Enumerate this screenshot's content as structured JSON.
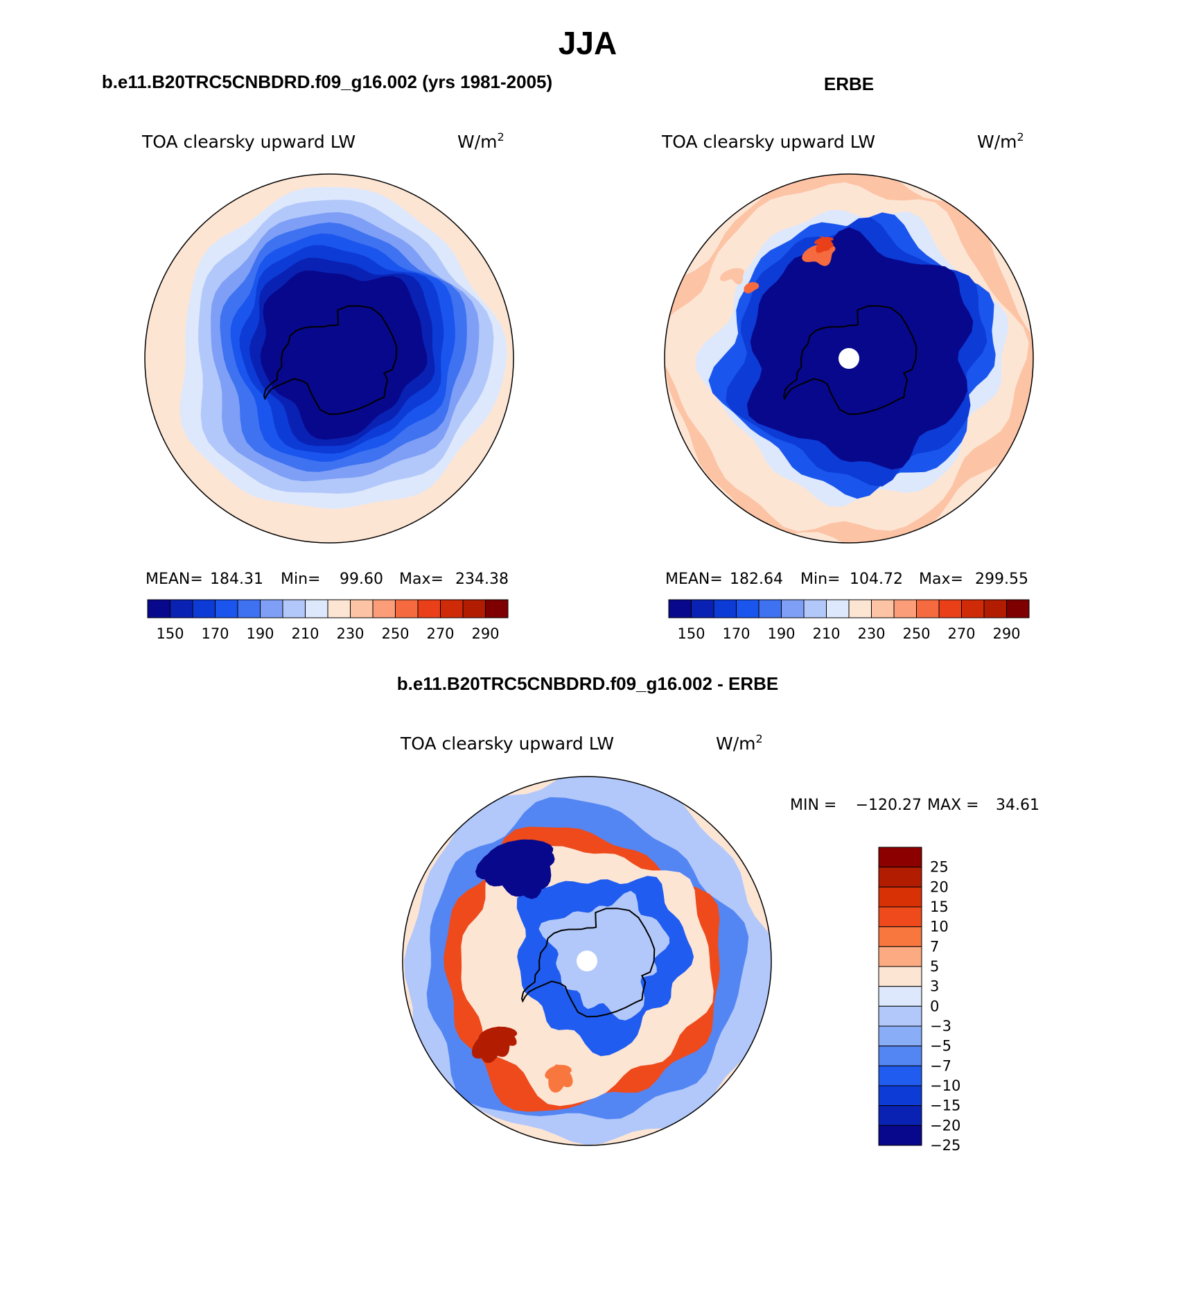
{
  "figure": {
    "title": "JJA",
    "title_left": "b.e11.B20TRC5CNBDRD.f09_g16.002 (yrs 1981-2005)",
    "title_right": "ERBE",
    "title_diff": "b.e11.B20TRC5CNBDRD.f09_g16.002 - ERBE"
  },
  "colors": {
    "ocean_warm": "#fde5d4",
    "outline": "#000000",
    "pole_fill": "#ffffff"
  },
  "chart_data": [
    {
      "type": "heatmap",
      "projection": "south-polar-stereographic",
      "panel": "model",
      "variable_label": "TOA clearsky upward LW",
      "units_label": "W/m",
      "units_sup": "2",
      "stats": {
        "mean_label": "MEAN=",
        "mean": "184.31",
        "min_label": "Min=",
        "min": "99.60",
        "max_label": "Max=",
        "max": "234.38"
      },
      "colorbar": {
        "orientation": "horizontal",
        "levels": [
          150,
          160,
          170,
          180,
          190,
          200,
          210,
          220,
          230,
          240,
          250,
          260,
          270,
          280,
          290
        ],
        "tick_labels": [
          "150",
          "170",
          "190",
          "210",
          "230",
          "250",
          "270",
          "290"
        ],
        "colors": [
          "#08088c",
          "#0a22b4",
          "#0d3bd6",
          "#1a55ee",
          "#3f72f1",
          "#7e9ff5",
          "#b3c8fa",
          "#dde8fc",
          "#fde5d4",
          "#fcc3a5",
          "#fb9d78",
          "#f56b3f",
          "#e9401a",
          "#d02b08",
          "#b21d02",
          "#7f0000"
        ]
      },
      "contour_bands": [
        {
          "level": 235,
          "color": "#fde5d4"
        },
        {
          "level": 225,
          "color": "#dde8fc"
        },
        {
          "level": 215,
          "color": "#b3c8fa"
        },
        {
          "level": 205,
          "color": "#7e9ff5"
        },
        {
          "level": 195,
          "color": "#3f72f1"
        },
        {
          "level": 185,
          "color": "#1a55ee"
        },
        {
          "level": 175,
          "color": "#0d3bd6"
        },
        {
          "level": 165,
          "color": "#0a22b4"
        },
        {
          "level": 130,
          "color": "#08088c"
        }
      ]
    },
    {
      "type": "heatmap",
      "projection": "south-polar-stereographic",
      "panel": "observations",
      "variable_label": "TOA clearsky upward LW",
      "units_label": "W/m",
      "units_sup": "2",
      "stats": {
        "mean_label": "MEAN=",
        "mean": "182.64",
        "min_label": "Min=",
        "min": "104.72",
        "max_label": "Max=",
        "max": "299.55"
      },
      "colorbar": {
        "orientation": "horizontal",
        "levels": [
          150,
          160,
          170,
          180,
          190,
          200,
          210,
          220,
          230,
          240,
          250,
          260,
          270,
          280,
          290
        ],
        "tick_labels": [
          "150",
          "170",
          "190",
          "210",
          "230",
          "250",
          "270",
          "290"
        ],
        "colors": [
          "#08088c",
          "#0a22b4",
          "#0d3bd6",
          "#1a55ee",
          "#3f72f1",
          "#7e9ff5",
          "#b3c8fa",
          "#dde8fc",
          "#fde5d4",
          "#fcc3a5",
          "#fb9d78",
          "#f56b3f",
          "#e9401a",
          "#d02b08",
          "#b21d02",
          "#7f0000"
        ]
      },
      "contour_bands": [
        {
          "level": 240,
          "color": "#fcc3a5"
        },
        {
          "level": 230,
          "color": "#fde5d4"
        },
        {
          "level": 225,
          "color": "#dde8fc"
        },
        {
          "level": 200,
          "color": "#1a55ee"
        },
        {
          "level": 180,
          "color": "#0d3bd6"
        },
        {
          "level": 130,
          "color": "#08088c"
        }
      ],
      "warm_patches": [
        {
          "level": 280,
          "color": "#e9401a"
        },
        {
          "level": 260,
          "color": "#f56b3f"
        },
        {
          "level": 245,
          "color": "#fcc3a5"
        }
      ]
    },
    {
      "type": "heatmap",
      "projection": "south-polar-stereographic",
      "panel": "difference",
      "variable_label": "TOA clearsky upward LW",
      "units_label": "W/m",
      "units_sup": "2",
      "stats": {
        "min_label": "MIN =",
        "min": "−120.27",
        "max_label": "MAX =",
        "max": "34.61"
      },
      "colorbar": {
        "orientation": "vertical",
        "levels": [
          -25,
          -20,
          -15,
          -10,
          -7,
          -5,
          -3,
          0,
          3,
          5,
          7,
          10,
          15,
          20,
          25
        ],
        "tick_labels": [
          "25",
          "20",
          "15",
          "10",
          "7",
          "5",
          "3",
          "0",
          "−3",
          "−5",
          "−7",
          "−10",
          "−15",
          "−20",
          "−25"
        ],
        "colors_top_to_bottom": [
          "#8c0000",
          "#b21d02",
          "#d83106",
          "#ee4a1c",
          "#f8773f",
          "#fbaa82",
          "#fde5d4",
          "#dde8fc",
          "#b3c8fa",
          "#8aadf7",
          "#5486f3",
          "#1f5cef",
          "#0d3bd6",
          "#0a22b4",
          "#08088c"
        ]
      },
      "contour_bands": [
        {
          "level": -4,
          "color": "#b3c8fa"
        },
        {
          "level": -12,
          "color": "#5486f3"
        },
        {
          "level": 14,
          "color": "#ee4a1c"
        },
        {
          "level": 4,
          "color": "#fde5d4"
        },
        {
          "level": -12,
          "color": "#1f5cef"
        },
        {
          "level": -4,
          "color": "#b3c8fa"
        }
      ],
      "patches": [
        {
          "level": -40,
          "color": "#08088c"
        },
        {
          "level": 22,
          "color": "#b21d02"
        },
        {
          "level": 12,
          "color": "#f8773f"
        }
      ]
    }
  ]
}
